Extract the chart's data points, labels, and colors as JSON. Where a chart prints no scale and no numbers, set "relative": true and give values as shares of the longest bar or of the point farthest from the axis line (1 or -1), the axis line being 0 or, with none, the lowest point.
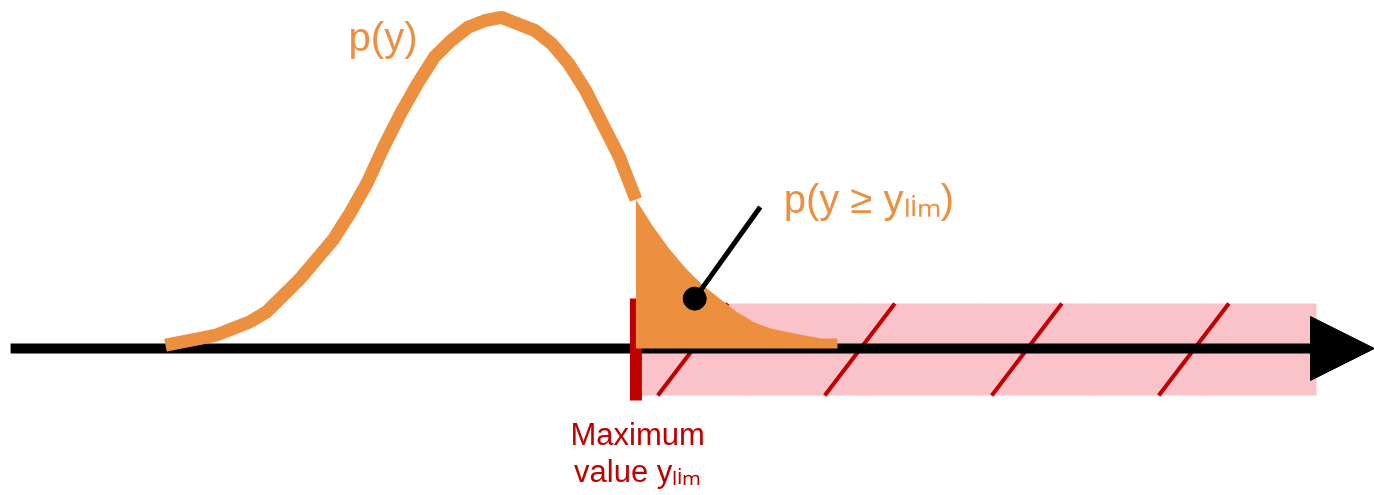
{
  "chart_data": {
    "type": "line",
    "relative": true,
    "categories": [
      null,
      null,
      null,
      null,
      null,
      null,
      null,
      null,
      null,
      null,
      null,
      null,
      null,
      null,
      null,
      null,
      null,
      null,
      null,
      null,
      null,
      null,
      null,
      null,
      null,
      null,
      null,
      null,
      null,
      null,
      null,
      null,
      null,
      null,
      null,
      null,
      null,
      null,
      null,
      null,
      null
    ],
    "series": [
      {
        "name": "p(y)",
        "color": "#ec8f3f",
        "values": [
          0.01,
          0.02,
          0.03,
          0.04,
          0.06,
          0.08,
          0.11,
          0.16,
          0.21,
          0.27,
          0.33,
          0.41,
          0.5,
          0.61,
          0.71,
          0.8,
          0.88,
          0.93,
          0.97,
          0.99,
          1,
          0.98,
          0.96,
          0.92,
          0.86,
          0.78,
          0.68,
          0.58,
          0.45,
          null,
          null,
          null,
          null,
          null,
          null,
          null,
          null,
          null,
          null,
          null,
          null
        ]
      },
      {
        "type": "area",
        "name": "p(y ≥ yₗᵢₘ)",
        "color": "#ec8f3f",
        "values": [
          null,
          null,
          null,
          null,
          null,
          null,
          null,
          null,
          null,
          null,
          null,
          null,
          null,
          null,
          null,
          null,
          null,
          null,
          null,
          null,
          null,
          null,
          null,
          null,
          null,
          null,
          null,
          null,
          0.45,
          0.37,
          0.3,
          0.24,
          0.19,
          0.15,
          0.11,
          0.08,
          0.06,
          0.05,
          0.04,
          0.03,
          0.03
        ]
      }
    ],
    "annotations": [
      "Maximum value yₗᵢₘ"
    ]
  }
}
